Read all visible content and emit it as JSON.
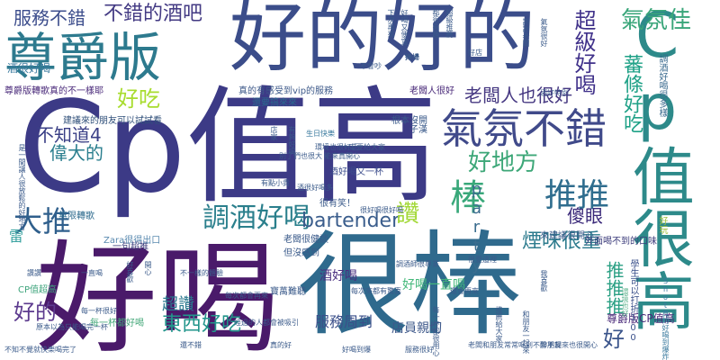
{
  "words": [
    {
      "text": "Cp值高",
      "color": "#3c3a86"
    },
    {
      "text": "好喝",
      "color": "#4a1a6a"
    },
    {
      "text": "很棒",
      "color": "#2f6a8d"
    },
    {
      "text": "好的好的",
      "color": "#3b4d8a"
    },
    {
      "text": "Cp值很高",
      "color": "#2d8a8a"
    },
    {
      "text": "尊爵版",
      "color": "#2d7a8e"
    },
    {
      "text": "氣氛不錯",
      "color": "#404a8a"
    },
    {
      "text": "棒",
      "color": "#39a87a"
    },
    {
      "text": "推推",
      "color": "#2f6d8e"
    },
    {
      "text": "調酒好喝",
      "color": "#2a7f8c"
    },
    {
      "text": "大推",
      "color": "#2f5f8c"
    },
    {
      "text": "氣氛佳",
      "color": "#3aa67a"
    },
    {
      "text": "超級好喝",
      "color": "#40318a"
    },
    {
      "text": "好地方",
      "color": "#3da778"
    },
    {
      "text": "老闆人也很好",
      "color": "#453781"
    },
    {
      "text": "偉大的",
      "color": "#2a7e8e"
    },
    {
      "text": "不知道4",
      "color": "#3a3f86"
    },
    {
      "text": "好吃",
      "color": "#a8dc2f"
    },
    {
      "text": "服務不錯",
      "color": "#3c4d8c"
    },
    {
      "text": "不錯的酒吧",
      "color": "#433a83"
    },
    {
      "text": "蕃條好吃",
      "color": "#1fa187"
    },
    {
      "text": "bartender",
      "color": "#3a5d8c"
    },
    {
      "text": "讚",
      "color": "#a2d836"
    },
    {
      "text": "煙味很重",
      "color": "#2e7c8e"
    },
    {
      "text": "傻眼",
      "color": "#3b2a7a"
    },
    {
      "text": "party",
      "color": "#3a6c8e"
    },
    {
      "text": "東西好吃",
      "color": "#22958b"
    },
    {
      "text": "好",
      "color": "#3a548b"
    },
    {
      "text": "推推推",
      "color": "#2ba084"
    },
    {
      "text": "好的",
      "color": "#5c3a8e"
    },
    {
      "text": "超讚",
      "color": "#2a788e"
    },
    {
      "text": "雷",
      "color": "#38a2a0"
    },
    {
      "text": "服務周到",
      "color": "#3b4f8a"
    },
    {
      "text": "店員親切",
      "color": "#3d588a"
    },
    {
      "text": "好喝一直喝",
      "color": "#44b87a"
    },
    {
      "text": "酒好喝",
      "color": "#4a2f80"
    },
    {
      "text": "尊爵版CP值高",
      "color": "#482878"
    },
    {
      "text": "學生可以打折100",
      "color": "#3b518b"
    },
    {
      "text": "CP值超高",
      "color": "#3ea47c"
    },
    {
      "text": "酒很好喝",
      "color": "#3a7a9e"
    },
    {
      "text": "無限轉歌",
      "color": "#2e6b8e"
    },
    {
      "text": "寶萬難聽",
      "color": "#3a5a8a"
    },
    {
      "text": "子漢",
      "color": "#3a5a8a"
    },
    {
      "text": "Shot真的好喝到爆炸",
      "color": "#3a7a9e"
    },
    {
      "text": "尊爵版轉歌真的不一樣耶",
      "color": "#4a2a7a"
    },
    {
      "text": "建議來的朋友可以試試看",
      "color": "#30507a"
    },
    {
      "text": "真的有感受到vip的服務",
      "color": "#3e5a8a"
    },
    {
      "text": "老闆人很好",
      "color": "#482878"
    },
    {
      "text": "調酒好喝很多樣",
      "color": "#3a6a8e"
    },
    {
      "text": "好玩",
      "color": "#a0c040"
    },
    {
      "text": "一句超推",
      "color": "#3a3a7a"
    },
    {
      "text": "每一杯都好喝",
      "color": "#45a87a"
    },
    {
      "text": "根本沒開",
      "color": "#3a5a8a"
    },
    {
      "text": "還要搞來來",
      "color": "#2a6a8e"
    },
    {
      "text": "老闆很健談",
      "color": "#3a5a8a"
    },
    {
      "text": "但沒感到",
      "color": "#3a5a8a"
    },
    {
      "text": "酒好喝又一杯",
      "color": "#3c4d8c"
    },
    {
      "text": "很有笑！",
      "color": "#3a5a8a"
    },
    {
      "text": "外面喝不到的口味",
      "color": "#3a3a7a"
    },
    {
      "text": "來建議很開心",
      "color": "#3a5a8a"
    },
    {
      "text": "Zara很得出口",
      "color": "#5a8ab0"
    },
    {
      "text": "每一杯很好",
      "color": "#3a5a8a"
    },
    {
      "text": "環境也好",
      "color": "#5ab08a"
    },
    {
      "text": "生日快樂",
      "color": "#3a7a9e"
    },
    {
      "text": "環境也很好玩",
      "color": "#3a5a8a"
    },
    {
      "text": "一定要給大家",
      "color": "#3a5a8a"
    },
    {
      "text": "店家",
      "color": "#3a5a8a"
    },
    {
      "text": "有夠好喝",
      "color": "#3a5a8a"
    },
    {
      "text": "都很有趣",
      "color": "#3a5a8a"
    },
    {
      "text": "超級推薦",
      "color": "#3a5a8a"
    },
    {
      "text": "下次再來",
      "color": "#3a5a8a"
    },
    {
      "text": "好喝又便宜",
      "color": "#3a5a8a"
    },
    {
      "text": "好棒",
      "color": "#3a5a8a"
    },
    {
      "text": "不會吵",
      "color": "#3a5a8a"
    },
    {
      "text": "酒好特別",
      "color": "#3a5a8a"
    },
    {
      "text": "謝謝老闆",
      "color": "#3a5a8a"
    },
    {
      "text": "氣氛很好",
      "color": "#3a5a8a"
    },
    {
      "text": "別了們也很大",
      "color": "#3a5a8a"
    },
    {
      "text": "能來真開心",
      "color": "#3a5a8a"
    },
    {
      "text": "有點小貴",
      "color": "#3a5a8a"
    },
    {
      "text": "酒很好喝多",
      "color": "#3a5a8a"
    },
    {
      "text": "捧場",
      "color": "#3a5a8a"
    },
    {
      "text": "是一間讓人很放鬆的好地方",
      "color": "#3a5a8a"
    },
    {
      "text": "原本以為只能喝完一杯",
      "color": "#3a5a8a"
    },
    {
      "text": "不知不覺就快樂喝完了",
      "color": "#3a5a8a"
    },
    {
      "text": "經過的人都會被吸引",
      "color": "#3a5a8a"
    },
    {
      "text": "很愛這裡",
      "color": "#3a5a8a"
    },
    {
      "text": "老闆和朋友常常喝到不醉不歸",
      "color": "#3a5a8a"
    },
    {
      "text": "帶朋友來也很開心",
      "color": "#3a5a8a"
    },
    {
      "text": "每次來都有驚喜",
      "color": "#3a5a8a"
    },
    {
      "text": "調酒師很專業",
      "color": "#3a5a8a"
    },
    {
      "text": "推薦給大家",
      "color": "#3a5a8a"
    },
    {
      "text": "每一杯都很用心",
      "color": "#3a5a8a"
    },
    {
      "text": "好喝到爆",
      "color": "#3a5a8a"
    },
    {
      "text": "服務很好",
      "color": "#3a5a8a"
    },
    {
      "text": "不一樣的體驗",
      "color": "#3a5a8a"
    },
    {
      "text": "很好喝很好喝",
      "color": "#3a5a8a"
    },
    {
      "text": "還會再來",
      "color": "#3a5a8a"
    },
    {
      "text": "真的好",
      "color": "#3a5a8a"
    },
    {
      "text": "每次都會再來",
      "color": "#3a5a8a"
    },
    {
      "text": "和朋友一起來",
      "color": "#3a5a8a"
    },
    {
      "text": "我喜歡",
      "color": "#3a5a8a"
    },
    {
      "text": "讚讚",
      "color": "#3a5a8a"
    },
    {
      "text": "一直喝",
      "color": "#3a5a8a"
    },
    {
      "text": "好喜歡",
      "color": "#3a5a8a"
    },
    {
      "text": "開心",
      "color": "#3a5a8a"
    },
    {
      "text": "還不錯",
      "color": "#3a5a8a"
    },
    {
      "text": "好店",
      "color": "#3a5a8a"
    }
  ]
}
